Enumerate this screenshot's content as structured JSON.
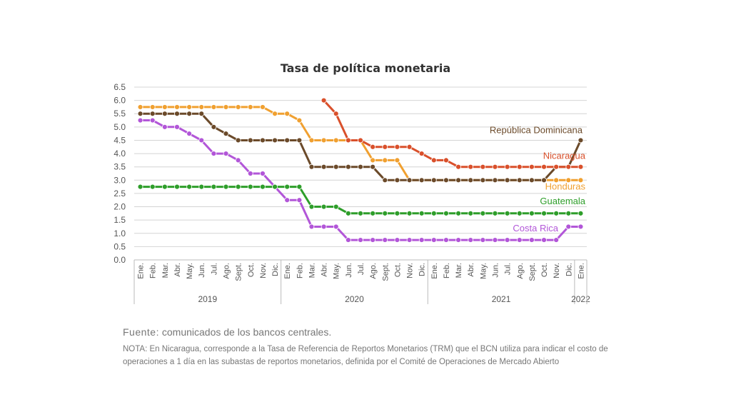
{
  "chart_data": {
    "type": "line",
    "title": "Tasa de política monetaria",
    "ylim": [
      0,
      6.5
    ],
    "yticks": [
      "0.0",
      "0.5",
      "1.0",
      "1.5",
      "2.0",
      "2.5",
      "3.0",
      "3.5",
      "4.0",
      "4.5",
      "5.0",
      "5.5",
      "6.0",
      "6.5"
    ],
    "grid": true,
    "x": [
      "Ene.",
      "Feb.",
      "Mar.",
      "Abr.",
      "May.",
      "Jun.",
      "Jul.",
      "Ago.",
      "Sept.",
      "Oct.",
      "Nov.",
      "Dic.",
      "Ene.",
      "Feb.",
      "Mar.",
      "Abr.",
      "May.",
      "Jun.",
      "Jul.",
      "Ago.",
      "Sept.",
      "Oct.",
      "Nov.",
      "Dic.",
      "Ene.",
      "Feb.",
      "Mar.",
      "Abr.",
      "May.",
      "Jun.",
      "Jul.",
      "Ago.",
      "Sept.",
      "Oct.",
      "Nov.",
      "Dic.",
      "Ene."
    ],
    "years": [
      {
        "label": "2019",
        "start": 0,
        "end": 11
      },
      {
        "label": "2020",
        "start": 12,
        "end": 23
      },
      {
        "label": "2021",
        "start": 24,
        "end": 35
      },
      {
        "label": "2022",
        "start": 36,
        "end": 36
      }
    ],
    "series": [
      {
        "name": "Costa Rica",
        "color": "#b256d8",
        "label_anchor": "end",
        "label_at": 33,
        "values": [
          5.25,
          5.25,
          5.0,
          5.0,
          4.75,
          4.5,
          4.0,
          4.0,
          3.75,
          3.25,
          3.25,
          2.75,
          2.25,
          2.25,
          1.25,
          1.25,
          1.25,
          0.75,
          0.75,
          0.75,
          0.75,
          0.75,
          0.75,
          0.75,
          0.75,
          0.75,
          0.75,
          0.75,
          0.75,
          0.75,
          0.75,
          0.75,
          0.75,
          0.75,
          0.75,
          1.25,
          1.25
        ]
      },
      {
        "name": "Guatemala",
        "color": "#2e9e2a",
        "label_anchor": "end",
        "label_at": 36,
        "values": [
          2.75,
          2.75,
          2.75,
          2.75,
          2.75,
          2.75,
          2.75,
          2.75,
          2.75,
          2.75,
          2.75,
          2.75,
          2.75,
          2.75,
          2.0,
          2.0,
          2.0,
          1.75,
          1.75,
          1.75,
          1.75,
          1.75,
          1.75,
          1.75,
          1.75,
          1.75,
          1.75,
          1.75,
          1.75,
          1.75,
          1.75,
          1.75,
          1.75,
          1.75,
          1.75,
          1.75,
          1.75
        ]
      },
      {
        "name": "Honduras",
        "color": "#f0a030",
        "label_anchor": "end",
        "label_at": 36,
        "values": [
          5.75,
          5.75,
          5.75,
          5.75,
          5.75,
          5.75,
          5.75,
          5.75,
          5.75,
          5.75,
          5.75,
          5.5,
          5.5,
          5.25,
          4.5,
          4.5,
          4.5,
          4.5,
          4.5,
          3.75,
          3.75,
          3.75,
          3.0,
          3.0,
          3.0,
          3.0,
          3.0,
          3.0,
          3.0,
          3.0,
          3.0,
          3.0,
          3.0,
          3.0,
          3.0,
          3.0,
          3.0
        ]
      },
      {
        "name": "República Dominicana",
        "color": "#6b4a2a",
        "label_anchor": "end",
        "label_at": 36,
        "values": [
          5.5,
          5.5,
          5.5,
          5.5,
          5.5,
          5.5,
          5.0,
          4.75,
          4.5,
          4.5,
          4.5,
          4.5,
          4.5,
          4.5,
          3.5,
          3.5,
          3.5,
          3.5,
          3.5,
          3.5,
          3.0,
          3.0,
          3.0,
          3.0,
          3.0,
          3.0,
          3.0,
          3.0,
          3.0,
          3.0,
          3.0,
          3.0,
          3.0,
          3.0,
          3.5,
          3.5,
          4.5
        ]
      },
      {
        "name": "Nicaragua",
        "color": "#d9502b",
        "label_anchor": "end",
        "label_at": 36,
        "values": [
          null,
          null,
          null,
          null,
          null,
          null,
          null,
          null,
          null,
          null,
          null,
          null,
          null,
          null,
          null,
          6.0,
          5.5,
          4.5,
          4.5,
          4.25,
          4.25,
          4.25,
          4.25,
          4.0,
          3.75,
          3.75,
          3.5,
          3.5,
          3.5,
          3.5,
          3.5,
          3.5,
          3.5,
          3.5,
          3.5,
          3.5,
          3.5
        ]
      }
    ]
  },
  "footer": {
    "source_label": "Fuente:",
    "source_text": " comunicados de los bancos centrales.",
    "note": "NOTA: En Nicaragua, corresponde a la Tasa de Referencia de Reportos Monetarios (TRM) que el BCN utiliza para indicar el costo de operaciones a 1 día en las subastas de reportos monetarios, definida por el Comité de Operaciones de Mercado Abierto"
  }
}
